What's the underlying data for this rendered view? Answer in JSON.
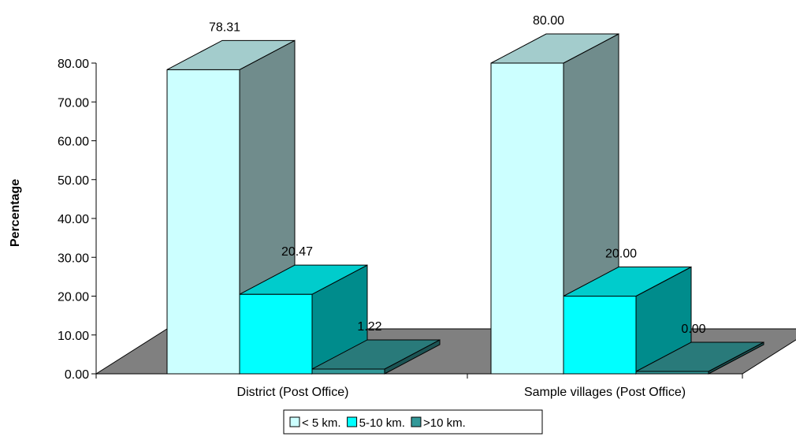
{
  "chart_data": {
    "type": "bar",
    "ylabel": "Percentage",
    "categories": [
      "District (Post Office)",
      "Sample villages (Post Office)"
    ],
    "series": [
      {
        "name": "< 5 km.",
        "values": [
          78.31,
          80.0
        ],
        "labels": [
          "78.31",
          "80.00"
        ],
        "color": "#CCFFFF"
      },
      {
        "name": "5-10 km.",
        "values": [
          20.47,
          20.0
        ],
        "labels": [
          "20.47",
          "20.00"
        ],
        "color": "#00FFFF"
      },
      {
        "name": ">10 km.",
        "values": [
          1.22,
          0.0
        ],
        "labels": [
          "1.22",
          "0.00"
        ],
        "color": "#339999"
      }
    ],
    "ylim": [
      0,
      80
    ],
    "yticks": [
      "0.00",
      "10.00",
      "20.00",
      "30.00",
      "40.00",
      "50.00",
      "60.00",
      "70.00",
      "80.00"
    ],
    "floor_color": "#808080",
    "legend_position": "bottom"
  }
}
